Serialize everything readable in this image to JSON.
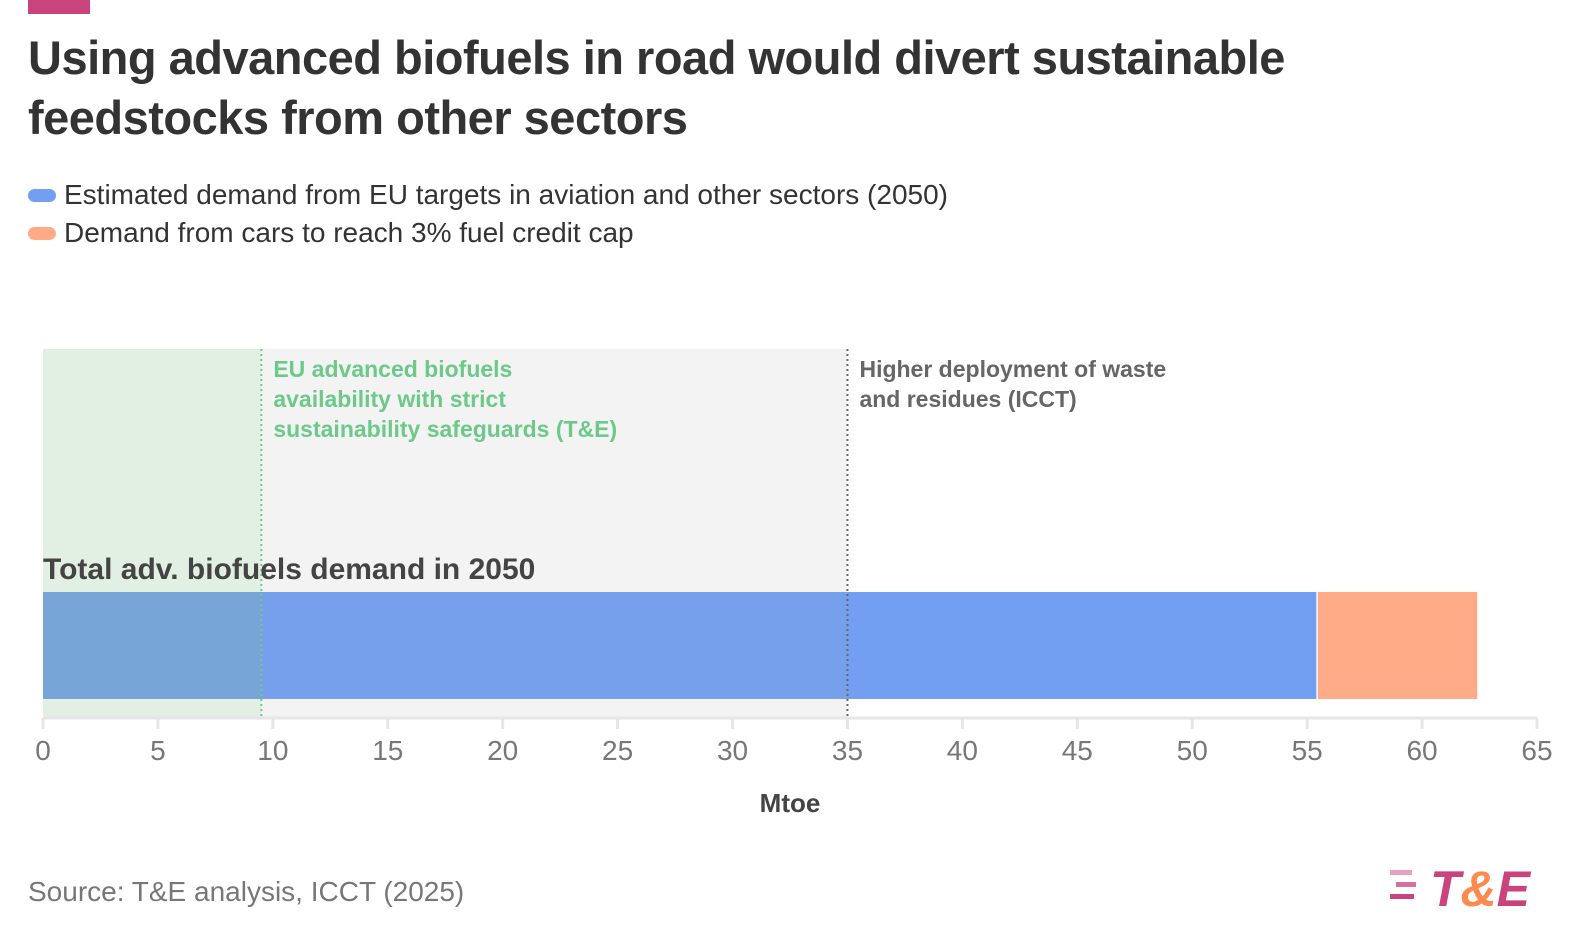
{
  "title": "Using advanced biofuels in road would divert sustainable feedstocks from other sectors",
  "source": "Source: T&E analysis, ICCT (2025)",
  "logo_text": "T&E",
  "chart_data": {
    "type": "bar",
    "orientation": "horizontal",
    "stacked": true,
    "categories": [
      "Total adv. biofuels demand in 2050"
    ],
    "series": [
      {
        "name": "Estimated demand from EU targets in aviation and other sectors (2050)",
        "values": [
          55.4
        ],
        "color": "#729ff2"
      },
      {
        "name": "Demand from cars to reach 3% fuel credit cap",
        "values": [
          7.0
        ],
        "color": "#ffab87"
      }
    ],
    "xlabel": "Mtoe",
    "xlim": [
      0,
      65
    ],
    "xticks": [
      "0",
      "5",
      "10",
      "15",
      "20",
      "25",
      "30",
      "35",
      "40",
      "45",
      "50",
      "55",
      "60",
      "65"
    ],
    "legend": "top-left",
    "annotations": [
      {
        "label": "EU advanced biofuels availability with strict sustainability safeguards (T&E)",
        "lines": [
          "EU advanced biofuels",
          "availability with strict",
          "sustainability safeguards (T&E)"
        ],
        "x": 9.5,
        "color": "#6cc98a",
        "shade": "#e2f0e3"
      },
      {
        "label": "Higher deployment of waste and residues (ICCT)",
        "lines": [
          "Higher deployment of waste",
          "and residues (ICCT)"
        ],
        "x": 35,
        "color": "#666666",
        "shade": "#f3f3f3"
      }
    ]
  }
}
